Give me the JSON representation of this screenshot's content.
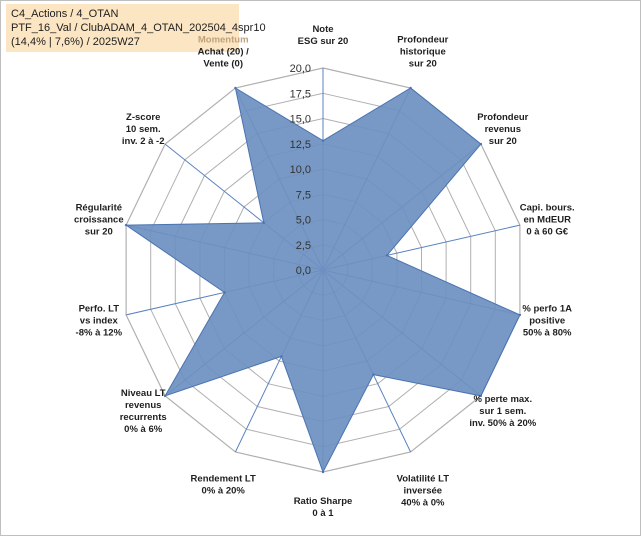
{
  "header": {
    "line1": "C4_Actions / 4_OTAN",
    "line2": "PTF_16_Val / ClubADAM_4_OTAN_202504_4spr10",
    "line3": "(14,4% | 7,6%) / 2025W27"
  },
  "colors": {
    "fill": "#6d90c0",
    "stroke": "#4a73b2",
    "grid": "#b0b0b0",
    "spoke": "#5a82c0",
    "highlight_label": "#bfa27a"
  },
  "chart_data": {
    "type": "radar",
    "rmin": 0,
    "rmax": 20,
    "ticks": [
      "0,0",
      "2,5",
      "5,0",
      "7,5",
      "10,0",
      "12,5",
      "15,0",
      "17,5",
      "20,0"
    ],
    "axes": [
      {
        "lines": [
          "Note",
          "ESG sur 20"
        ],
        "value": 12.8
      },
      {
        "lines": [
          "Profondeur",
          "historique",
          "sur 20"
        ],
        "value": 20
      },
      {
        "lines": [
          "Profondeur",
          "revenus",
          "sur 20"
        ],
        "value": 20
      },
      {
        "lines": [
          "Capi. bours.",
          "en MdEUR",
          "0 à 60 G€"
        ],
        "value": 6.5
      },
      {
        "lines": [
          "% perfo 1A",
          "positive",
          "50% à 80%"
        ],
        "value": 20
      },
      {
        "lines": [
          "% perte max.",
          "sur 1 sem.",
          "inv. 50% à 20%"
        ],
        "value": 20
      },
      {
        "lines": [
          "Volatilité LT",
          "inversée",
          "40% à 0%"
        ],
        "value": 11.5
      },
      {
        "lines": [
          "Ratio Sharpe",
          "0 à 1"
        ],
        "value": 20
      },
      {
        "lines": [
          "Rendement LT",
          "0% à 20%"
        ],
        "value": 9.5
      },
      {
        "lines": [
          "Niveau LT",
          "revenus",
          "recurrents",
          "0% à 6%"
        ],
        "value": 20
      },
      {
        "lines": [
          "Perfo. LT",
          "vs index",
          "-8% à 12%"
        ],
        "value": 10
      },
      {
        "lines": [
          "Régularité",
          "croissance",
          "sur 20"
        ],
        "value": 20
      },
      {
        "lines": [
          "Z-score",
          "10 sem.",
          "inv. 2 à -2"
        ],
        "value": 7.5
      },
      {
        "lines": [
          "Momentum",
          "Achat (20) /",
          "Vente (0)"
        ],
        "value": 20,
        "highlight_first_line": true
      }
    ]
  }
}
